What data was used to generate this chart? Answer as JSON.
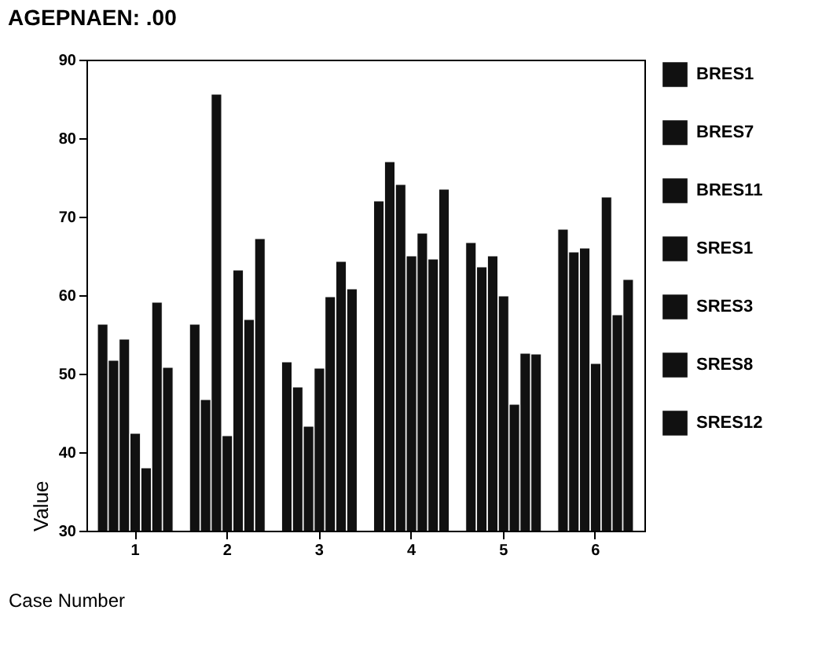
{
  "chart_data": {
    "type": "bar",
    "title": "AGEPNAEN:      .00",
    "xlabel": "Case Number",
    "ylabel": "Value",
    "categories": [
      "1",
      "2",
      "3",
      "4",
      "5",
      "6"
    ],
    "series": [
      {
        "name": "BRES1",
        "color": "#111111",
        "values": [
          56.3,
          56.3,
          51.5,
          72,
          66.7,
          68.4
        ]
      },
      {
        "name": "BRES7",
        "color": "#111111",
        "values": [
          51.7,
          46.7,
          48.3,
          77,
          63.6,
          65.5
        ]
      },
      {
        "name": "BRES11",
        "color": "#111111",
        "values": [
          54.4,
          85.6,
          43.3,
          74.1,
          65,
          66
        ]
      },
      {
        "name": "SRES1",
        "color": "#111111",
        "values": [
          42.4,
          42.1,
          50.7,
          65,
          59.9,
          51.3
        ]
      },
      {
        "name": "SRES3",
        "color": "#111111",
        "values": [
          38,
          63.2,
          59.8,
          67.9,
          46.1,
          72.5
        ]
      },
      {
        "name": "SRES8",
        "color": "#111111",
        "values": [
          59.1,
          56.9,
          64.3,
          64.6,
          52.6,
          57.5
        ]
      },
      {
        "name": "SRES12",
        "color": "#111111",
        "values": [
          50.8,
          67.2,
          60.8,
          73.5,
          52.5,
          62
        ]
      }
    ],
    "ylim": [
      30,
      90
    ],
    "yticks": [
      30,
      40,
      50,
      60,
      70,
      80,
      90
    ],
    "grid": false,
    "legend": "right"
  }
}
